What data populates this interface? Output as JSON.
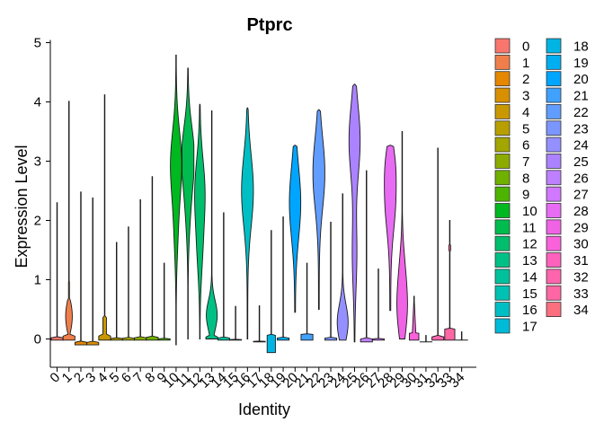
{
  "chart_data": {
    "type": "violin",
    "title": "Ptprc",
    "xlabel": "Identity",
    "ylabel": "Expression Level",
    "ylim": [
      -0.5,
      5.0
    ],
    "yticks": [
      "0",
      "1",
      "2",
      "3",
      "4",
      "5"
    ],
    "categories": [
      "0",
      "1",
      "2",
      "3",
      "4",
      "5",
      "6",
      "7",
      "8",
      "9",
      "10",
      "11",
      "12",
      "13",
      "14",
      "15",
      "16",
      "17",
      "18",
      "19",
      "20",
      "21",
      "22",
      "23",
      "24",
      "25",
      "26",
      "27",
      "28",
      "29",
      "30",
      "31",
      "32",
      "33",
      "34"
    ],
    "max_values": [
      2.3,
      4.01,
      2.48,
      2.38,
      4.12,
      1.63,
      1.89,
      2.35,
      2.74,
      1.28,
      4.79,
      4.57,
      3.96,
      3.85,
      2.13,
      0.55,
      3.9,
      0.56,
      1.83,
      2.06,
      3.27,
      1.28,
      3.87,
      1.97,
      2.45,
      4.3,
      2.84,
      1.18,
      3.27,
      3.5,
      0.72,
      0.06,
      3.22,
      2.0,
      0.12
    ],
    "min_values": [
      -0.02,
      -0.02,
      -0.1,
      -0.1,
      -0.02,
      -0.02,
      -0.02,
      -0.02,
      -0.02,
      -0.02,
      -0.1,
      0.0,
      0.0,
      0.0,
      -0.02,
      -0.02,
      0.0,
      -0.05,
      -0.23,
      -0.02,
      0.45,
      -0.02,
      0.5,
      -0.02,
      -0.02,
      -0.05,
      -0.05,
      -0.02,
      0.48,
      0.0,
      -0.02,
      -0.05,
      -0.02,
      -0.02,
      -0.02
    ],
    "legend": {
      "position": "right",
      "colors": [
        "#F8766D",
        "#F07E4B",
        "#E58700",
        "#D89000",
        "#C99800",
        "#B79F00",
        "#A3A500",
        "#8CAB00",
        "#6FB000",
        "#4CB400",
        "#00B81F",
        "#00BB4E",
        "#00BE6C",
        "#00C085",
        "#00C19C",
        "#00C1B2",
        "#00BFC4",
        "#00BBD7",
        "#00B5E4",
        "#00AEF1",
        "#00A5FF",
        "#40A1FF",
        "#619CFF",
        "#7C96FF",
        "#9590FF",
        "#AB82FF",
        "#BE80FF",
        "#D078FF",
        "#E76BF3",
        "#F063E5",
        "#FA62DB",
        "#FF62BC",
        "#FF65AE",
        "#FF67A4",
        "#FC6F7E"
      ]
    }
  }
}
